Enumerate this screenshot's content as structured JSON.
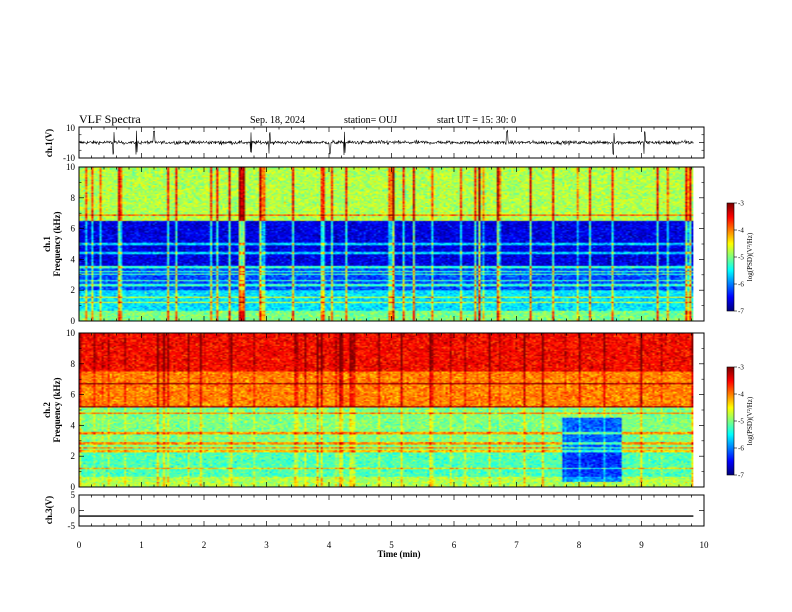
{
  "header": {
    "title": "VLF Spectra",
    "date": "Sep. 18, 2024",
    "station": "station= OUJ",
    "start": "start  UT  =   15: 30: 0"
  },
  "chart_data": [
    {
      "type": "line",
      "name": "ch1-waveform",
      "ylabel": "ch.1(V)",
      "ylim": [
        -10,
        10
      ],
      "yticks": [
        "10",
        "-10"
      ],
      "xlim": [
        0,
        10
      ],
      "data_extent_min": 9.83,
      "baseline_v": 0.0,
      "approx_amplitude_v": 2.5,
      "spikes_min": [
        0.55,
        0.92,
        1.2,
        2.75,
        3.05,
        4.02,
        4.25,
        6.85,
        8.55,
        9.05
      ]
    },
    {
      "type": "heatmap",
      "name": "ch1-spectrogram",
      "ylabel": "ch.1\nFrequency  (kHz)",
      "ylim": [
        0,
        10
      ],
      "yticks": [
        "0",
        "2",
        "4",
        "6",
        "8",
        "10"
      ],
      "xlim": [
        0,
        10
      ],
      "data_extent_min": 9.83,
      "colorbar": {
        "label": "log(PSD)(V²/Hz)",
        "range": [
          -7,
          -3
        ],
        "ticks": [
          "-3",
          "-4",
          "-5",
          "-6",
          "-7"
        ]
      },
      "bands_khz_approx_log_psd": [
        [
          0,
          0.6,
          -5.0
        ],
        [
          0.6,
          2.0,
          -5.6
        ],
        [
          2.0,
          3.6,
          -6.2
        ],
        [
          3.6,
          6.5,
          -6.6
        ],
        [
          6.5,
          10,
          -4.8
        ]
      ],
      "lines_khz": [
        1.2,
        1.5,
        2.3,
        2.6,
        3.0,
        3.2,
        3.5,
        4.4,
        5.0,
        6.9
      ]
    },
    {
      "type": "heatmap",
      "name": "ch2-spectrogram",
      "ylabel": "ch.2\nFrequency  (kHz)",
      "ylim": [
        0,
        10
      ],
      "yticks": [
        "0",
        "2",
        "4",
        "6",
        "8",
        "10"
      ],
      "xlim": [
        0,
        10
      ],
      "data_extent_min": 9.83,
      "colorbar": {
        "label": "log(PSD)(V²/Hz)",
        "range": [
          -7,
          -3
        ],
        "ticks": [
          "-3",
          "-4",
          "-5",
          "-6",
          "-7"
        ]
      },
      "bands_khz_approx_log_psd": [
        [
          0,
          0.6,
          -4.8
        ],
        [
          0.6,
          2.4,
          -5.2
        ],
        [
          2.4,
          5.2,
          -5.0
        ],
        [
          5.2,
          7.5,
          -4.0
        ],
        [
          7.5,
          10,
          -3.5
        ]
      ],
      "lines_khz": [
        1.2,
        2.3,
        2.5,
        2.8,
        3.5,
        4.8,
        5.2,
        6.7
      ]
    },
    {
      "type": "line",
      "name": "ch3-waveform",
      "ylabel": "ch.3(V)",
      "ylim": [
        -5,
        5
      ],
      "yticks": [
        "5",
        "0",
        "-5"
      ],
      "xlim": [
        0,
        10
      ],
      "xlabel": "Time  (min)",
      "xticks": [
        "0",
        "1",
        "2",
        "3",
        "4",
        "5",
        "6",
        "7",
        "8",
        "9",
        "10"
      ],
      "data_extent_min": 9.83,
      "constant_v": -1.8
    }
  ]
}
